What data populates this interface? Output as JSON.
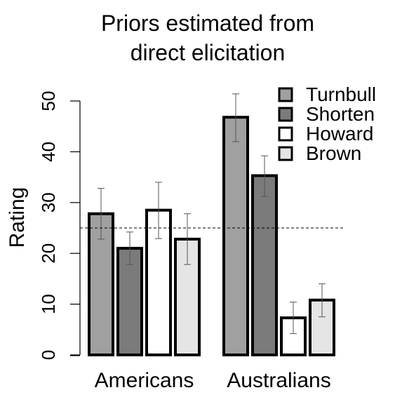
{
  "chart_data": {
    "type": "bar",
    "title_lines": [
      "Priors estimated from",
      "direct elicitation"
    ],
    "xlabel": "",
    "ylabel": "Rating",
    "ylim": [
      0,
      50
    ],
    "yticks": [
      0,
      10,
      20,
      30,
      40,
      50
    ],
    "categories": [
      "Americans",
      "Australians"
    ],
    "reference_line": 25,
    "series": [
      {
        "name": "Turnbull",
        "color": "#a0a0a0",
        "values": [
          27.8,
          46.8
        ],
        "lower": [
          22.8,
          42.0
        ],
        "upper": [
          32.8,
          51.4
        ]
      },
      {
        "name": "Shorten",
        "color": "#7b7b7b",
        "values": [
          21.0,
          35.3
        ],
        "lower": [
          17.8,
          31.2
        ],
        "upper": [
          24.2,
          39.2
        ]
      },
      {
        "name": "Howard",
        "color": "#ffffff",
        "values": [
          28.5,
          7.3
        ],
        "lower": [
          22.9,
          4.2
        ],
        "upper": [
          34.0,
          10.4
        ]
      },
      {
        "name": "Brown",
        "color": "#e5e5e5",
        "values": [
          22.8,
          10.8
        ],
        "lower": [
          17.8,
          7.5
        ],
        "upper": [
          27.8,
          14.0
        ]
      }
    ],
    "legend_position": "top-right",
    "grid": false
  }
}
